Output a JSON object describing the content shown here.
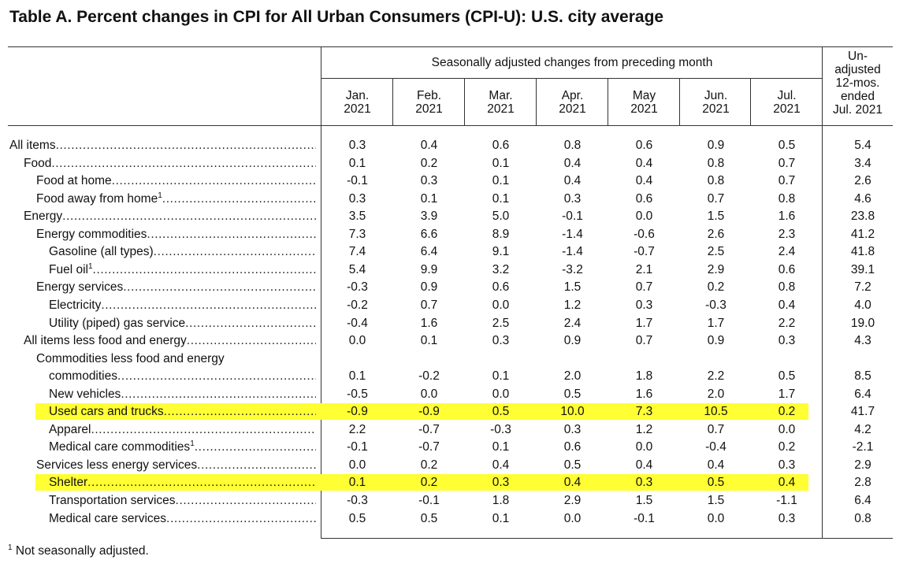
{
  "title": "Table A. Percent changes in CPI for All Urban Consumers (CPI-U): U.S. city average",
  "header": {
    "group_label": "Seasonally adjusted changes from preceding month",
    "months": [
      {
        "month": "Jan.",
        "year": "2021"
      },
      {
        "month": "Feb.",
        "year": "2021"
      },
      {
        "month": "Mar.",
        "year": "2021"
      },
      {
        "month": "Apr.",
        "year": "2021"
      },
      {
        "month": "May",
        "year": "2021"
      },
      {
        "month": "Jun.",
        "year": "2021"
      },
      {
        "month": "Jul.",
        "year": "2021"
      }
    ],
    "unadjusted_lines": [
      "Un-",
      "adjusted",
      "12-mos.",
      "ended",
      "Jul. 2021"
    ]
  },
  "rows": [
    {
      "label": "All items",
      "indent": 0,
      "values": [
        "0.3",
        "0.4",
        "0.6",
        "0.8",
        "0.6",
        "0.9",
        "0.5"
      ],
      "unadj": "5.4",
      "dots": true
    },
    {
      "label": "Food",
      "indent": 1,
      "values": [
        "0.1",
        "0.2",
        "0.1",
        "0.4",
        "0.4",
        "0.8",
        "0.7"
      ],
      "unadj": "3.4",
      "dots": true
    },
    {
      "label": "Food at home",
      "indent": 2,
      "values": [
        "-0.1",
        "0.3",
        "0.1",
        "0.4",
        "0.4",
        "0.8",
        "0.7"
      ],
      "unadj": "2.6",
      "dots": true
    },
    {
      "label": "Food away from home",
      "sup": "1",
      "indent": 2,
      "values": [
        "0.3",
        "0.1",
        "0.1",
        "0.3",
        "0.6",
        "0.7",
        "0.8"
      ],
      "unadj": "4.6",
      "dots": true
    },
    {
      "label": "Energy",
      "indent": 1,
      "values": [
        "3.5",
        "3.9",
        "5.0",
        "-0.1",
        "0.0",
        "1.5",
        "1.6"
      ],
      "unadj": "23.8",
      "dots": true
    },
    {
      "label": "Energy commodities",
      "indent": 2,
      "values": [
        "7.3",
        "6.6",
        "8.9",
        "-1.4",
        "-0.6",
        "2.6",
        "2.3"
      ],
      "unadj": "41.2",
      "dots": true
    },
    {
      "label": "Gasoline (all types)",
      "indent": 3,
      "values": [
        "7.4",
        "6.4",
        "9.1",
        "-1.4",
        "-0.7",
        "2.5",
        "2.4"
      ],
      "unadj": "41.8",
      "dots": true
    },
    {
      "label": "Fuel oil",
      "sup": "1",
      "indent": 3,
      "values": [
        "5.4",
        "9.9",
        "3.2",
        "-3.2",
        "2.1",
        "2.9",
        "0.6"
      ],
      "unadj": "39.1",
      "dots": true
    },
    {
      "label": "Energy services",
      "indent": 2,
      "values": [
        "-0.3",
        "0.9",
        "0.6",
        "1.5",
        "0.7",
        "0.2",
        "0.8"
      ],
      "unadj": "7.2",
      "dots": true
    },
    {
      "label": "Electricity",
      "indent": 3,
      "values": [
        "-0.2",
        "0.7",
        "0.0",
        "1.2",
        "0.3",
        "-0.3",
        "0.4"
      ],
      "unadj": "4.0",
      "dots": true
    },
    {
      "label": "Utility (piped) gas service",
      "indent": 3,
      "values": [
        "-0.4",
        "1.6",
        "2.5",
        "2.4",
        "1.7",
        "1.7",
        "2.2"
      ],
      "unadj": "19.0",
      "dots": true
    },
    {
      "label": "All items less food and energy",
      "indent": 1,
      "values": [
        "0.0",
        "0.1",
        "0.3",
        "0.9",
        "0.7",
        "0.9",
        "0.3"
      ],
      "unadj": "4.3",
      "dots": true
    },
    {
      "label": "Commodities less food and energy",
      "indent": 2,
      "values": [],
      "unadj": "",
      "dots": false
    },
    {
      "label": "commodities",
      "indent": 3,
      "values": [
        "0.1",
        "-0.2",
        "0.1",
        "2.0",
        "1.8",
        "2.2",
        "0.5"
      ],
      "unadj": "8.5",
      "dots": true
    },
    {
      "label": "New vehicles",
      "indent": 3,
      "values": [
        "-0.5",
        "0.0",
        "0.0",
        "0.5",
        "1.6",
        "2.0",
        "1.7"
      ],
      "unadj": "6.4",
      "dots": true
    },
    {
      "label": "Used cars and trucks",
      "indent": 3,
      "values": [
        "-0.9",
        "-0.9",
        "0.5",
        "10.0",
        "7.3",
        "10.5",
        "0.2"
      ],
      "unadj": "41.7",
      "dots": true,
      "highlight": true
    },
    {
      "label": "Apparel",
      "indent": 3,
      "values": [
        "2.2",
        "-0.7",
        "-0.3",
        "0.3",
        "1.2",
        "0.7",
        "0.0"
      ],
      "unadj": "4.2",
      "dots": true
    },
    {
      "label": "Medical care commodities",
      "sup": "1",
      "indent": 3,
      "values": [
        "-0.1",
        "-0.7",
        "0.1",
        "0.6",
        "0.0",
        "-0.4",
        "0.2"
      ],
      "unadj": "-2.1",
      "dots": true
    },
    {
      "label": "Services less energy services",
      "indent": 2,
      "values": [
        "0.0",
        "0.2",
        "0.4",
        "0.5",
        "0.4",
        "0.4",
        "0.3"
      ],
      "unadj": "2.9",
      "dots": true
    },
    {
      "label": "Shelter",
      "indent": 3,
      "values": [
        "0.1",
        "0.2",
        "0.3",
        "0.4",
        "0.3",
        "0.5",
        "0.4"
      ],
      "unadj": "2.8",
      "dots": true,
      "highlight": true
    },
    {
      "label": "Transportation services",
      "indent": 3,
      "values": [
        "-0.3",
        "-0.1",
        "1.8",
        "2.9",
        "1.5",
        "1.5",
        "-1.1"
      ],
      "unadj": "6.4",
      "dots": true
    },
    {
      "label": "Medical care services",
      "indent": 3,
      "values": [
        "0.5",
        "0.5",
        "0.1",
        "0.0",
        "-0.1",
        "0.0",
        "0.3"
      ],
      "unadj": "0.8",
      "dots": true
    }
  ],
  "footnote": {
    "marker": "1",
    "text": " Not seasonally adjusted."
  },
  "colors": {
    "highlight": "#ffff33",
    "rule": "#333333"
  }
}
